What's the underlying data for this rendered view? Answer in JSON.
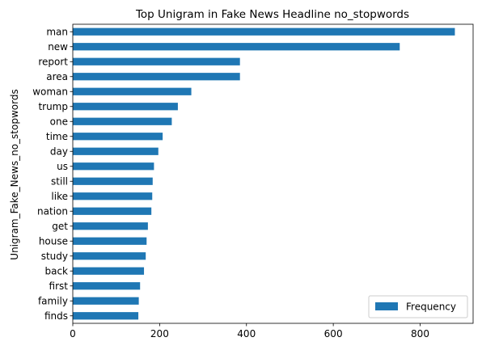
{
  "chart_data": {
    "type": "bar",
    "orientation": "horizontal",
    "title": "Top Unigram in Fake News Headline no_stopwords",
    "xlabel": "",
    "ylabel": "Unigram_Fake_News_no_stopwords",
    "xlim": [
      0,
      922
    ],
    "xticks": [
      0,
      200,
      400,
      600,
      800
    ],
    "grid": false,
    "legend_position": "bottom-right",
    "series": [
      {
        "name": "Frequency",
        "color": "#1f77b4",
        "categories": [
          "man",
          "new",
          "report",
          "area",
          "woman",
          "trump",
          "one",
          "time",
          "day",
          "us",
          "still",
          "like",
          "nation",
          "get",
          "house",
          "study",
          "back",
          "first",
          "family",
          "finds"
        ],
        "values": [
          880,
          753,
          385,
          385,
          273,
          242,
          228,
          207,
          197,
          187,
          184,
          183,
          181,
          173,
          170,
          168,
          164,
          155,
          152,
          151
        ]
      }
    ]
  }
}
